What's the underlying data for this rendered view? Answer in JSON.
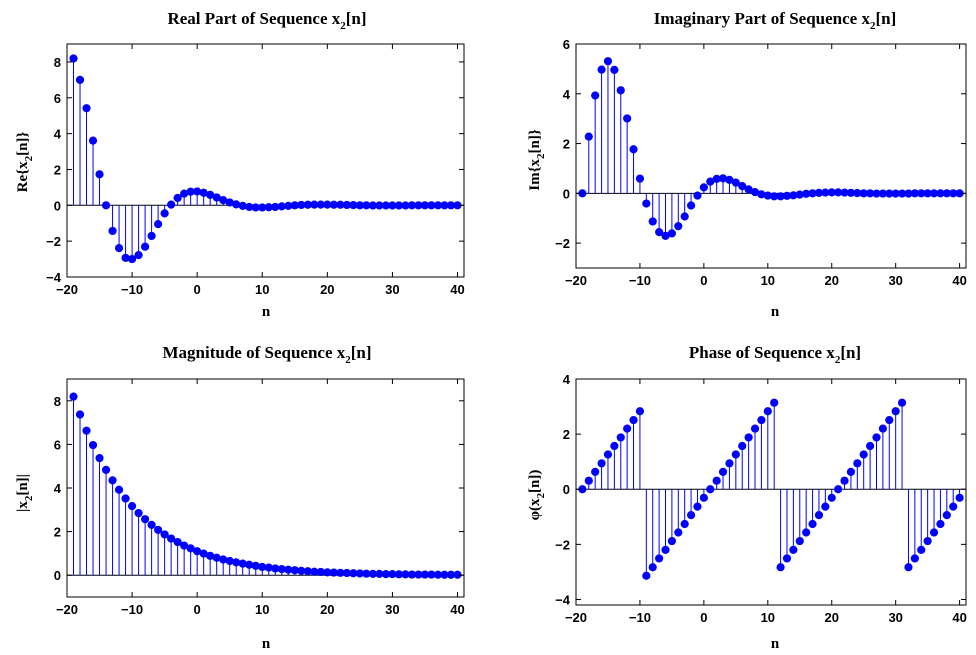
{
  "colors": {
    "stem": "#0000ff",
    "axis": "#000000",
    "baseline": "#000000"
  },
  "subplots": [
    {
      "title": {
        "main": "Real Part of Sequence x",
        "sub": "2",
        "tail": "[n]"
      },
      "ylabel": {
        "pre": "Re{x",
        "sub": "2",
        "post": "[n]}"
      },
      "xlabel": "n"
    },
    {
      "title": {
        "main": "Imaginary Part of Sequence x",
        "sub": "2",
        "tail": "[n]"
      },
      "ylabel": {
        "pre": "Im{x",
        "sub": "2",
        "post": "[n]}"
      },
      "xlabel": "n"
    },
    {
      "title": {
        "main": "Magnitude of Sequence x",
        "sub": "2",
        "tail": "[n]"
      },
      "ylabel": {
        "pre": "|x",
        "sub": "2",
        "post": "[n]|"
      },
      "xlabel": "n"
    },
    {
      "title": {
        "main": "Phase of Sequence x",
        "sub": "2",
        "tail": "[n]"
      },
      "ylabel": {
        "pre": "φ(x",
        "sub": "2",
        "post": "[n])"
      },
      "xlabel": "n"
    }
  ],
  "chart_data": [
    {
      "type": "stem",
      "title": "Real Part of Sequence x_2[n]",
      "xlabel": "n",
      "ylabel": "Re{x_2[n]}",
      "xlim": [
        -20,
        41
      ],
      "ylim": [
        -4,
        9
      ],
      "xticks": [
        -20,
        -10,
        0,
        10,
        20,
        30,
        40
      ],
      "xtick_labels": [
        "−20",
        "−10",
        "0",
        "10",
        "20",
        "30",
        "40"
      ],
      "yticks": [
        -4,
        -2,
        0,
        2,
        4,
        6,
        8
      ],
      "ytick_labels": [
        "−4",
        "−2",
        "0",
        "2",
        "4",
        "6",
        "8"
      ],
      "x": [
        -19,
        -18,
        -17,
        -16,
        -15,
        -14,
        -13,
        -12,
        -11,
        -10,
        -9,
        -8,
        -7,
        -6,
        -5,
        -4,
        -3,
        -2,
        -1,
        0,
        1,
        2,
        3,
        4,
        5,
        6,
        7,
        8,
        9,
        10,
        11,
        12,
        13,
        14,
        15,
        16,
        17,
        18,
        19,
        20,
        21,
        22,
        23,
        24,
        25,
        26,
        27,
        28,
        29,
        30,
        31,
        32,
        33,
        34,
        35,
        36,
        37,
        38,
        39,
        40
      ],
      "values": [
        8.19,
        7.0,
        5.42,
        3.61,
        1.73,
        -0.0,
        -1.43,
        -2.39,
        -2.93,
        -3.0,
        -2.78,
        -2.31,
        -1.71,
        -1.05,
        -0.45,
        0.04,
        0.41,
        0.65,
        0.76,
        0.77,
        0.7,
        0.58,
        0.44,
        0.29,
        0.16,
        0.05,
        -0.03,
        -0.09,
        -0.12,
        -0.12,
        -0.11,
        -0.09,
        -0.06,
        -0.03,
        -0.0,
        0.02,
        0.03,
        0.04,
        0.04,
        0.04,
        0.03,
        0.03,
        0.02,
        0.01,
        0.0,
        -0.0,
        -0.01,
        -0.01,
        -0.01,
        -0.01,
        -0.01,
        -0.01,
        -0.0,
        -0.0,
        -0.0,
        0.0,
        0.0,
        0.0,
        0.0,
        0.0
      ]
    },
    {
      "type": "stem",
      "title": "Imaginary Part of Sequence x_2[n]",
      "xlabel": "n",
      "ylabel": "Im{x_2[n]}",
      "xlim": [
        -20,
        41
      ],
      "ylim": [
        -3,
        6
      ],
      "xticks": [
        -20,
        -10,
        0,
        10,
        20,
        30,
        40
      ],
      "xtick_labels": [
        "−20",
        "−10",
        "0",
        "10",
        "20",
        "30",
        "40"
      ],
      "yticks": [
        -2,
        0,
        2,
        4,
        6
      ],
      "ytick_labels": [
        "−2",
        "0",
        "2",
        "4",
        "6"
      ],
      "x": [
        -19,
        -18,
        -17,
        -16,
        -15,
        -14,
        -13,
        -12,
        -11,
        -10,
        -9,
        -8,
        -7,
        -6,
        -5,
        -4,
        -3,
        -2,
        -1,
        0,
        1,
        2,
        3,
        4,
        5,
        6,
        7,
        8,
        9,
        10,
        11,
        12,
        13,
        14,
        15,
        16,
        17,
        18,
        19,
        20,
        21,
        22,
        23,
        24,
        25,
        26,
        27,
        28,
        29,
        30,
        31,
        32,
        33,
        34,
        35,
        36,
        37,
        38,
        39,
        40
      ],
      "values": [
        0.0,
        2.28,
        3.93,
        4.97,
        5.31,
        4.96,
        4.14,
        3.01,
        1.77,
        0.59,
        -0.41,
        -1.13,
        -1.56,
        -1.71,
        -1.61,
        -1.32,
        -0.93,
        -0.49,
        -0.09,
        0.24,
        0.47,
        0.58,
        0.6,
        0.54,
        0.43,
        0.29,
        0.16,
        0.05,
        -0.04,
        -0.09,
        -0.12,
        -0.12,
        -0.1,
        -0.08,
        -0.05,
        -0.02,
        0.0,
        0.02,
        0.03,
        0.04,
        0.04,
        0.03,
        0.02,
        0.01,
        0.0,
        -0.0,
        -0.01,
        -0.01,
        -0.01,
        -0.01,
        -0.01,
        -0.01,
        -0.0,
        -0.0,
        -0.0,
        0.0,
        0.0,
        0.0,
        0.0,
        0.0
      ]
    },
    {
      "type": "stem",
      "title": "Magnitude of Sequence x_2[n]",
      "xlabel": "n",
      "ylabel": "|x_2[n]|",
      "xlim": [
        -20,
        41
      ],
      "ylim": [
        -1,
        9
      ],
      "xticks": [
        -20,
        -10,
        0,
        10,
        20,
        30,
        40
      ],
      "xtick_labels": [
        "−20",
        "−10",
        "0",
        "10",
        "20",
        "30",
        "40"
      ],
      "yticks": [
        0,
        2,
        4,
        6,
        8
      ],
      "ytick_labels": [
        "0",
        "2",
        "4",
        "6",
        "8"
      ],
      "x": [
        -19,
        -18,
        -17,
        -16,
        -15,
        -14,
        -13,
        -12,
        -11,
        -10,
        -9,
        -8,
        -7,
        -6,
        -5,
        -4,
        -3,
        -2,
        -1,
        0,
        1,
        2,
        3,
        4,
        5,
        6,
        7,
        8,
        9,
        10,
        11,
        12,
        13,
        14,
        15,
        16,
        17,
        18,
        19,
        20,
        21,
        22,
        23,
        24,
        25,
        26,
        27,
        28,
        29,
        30,
        31,
        32,
        33,
        34,
        35,
        36,
        37,
        38,
        39,
        40
      ],
      "values": [
        8.19,
        7.37,
        6.63,
        5.97,
        5.37,
        4.83,
        4.35,
        3.92,
        3.52,
        3.17,
        2.85,
        2.57,
        2.31,
        2.08,
        1.87,
        1.68,
        1.52,
        1.36,
        1.23,
        1.1,
        0.99,
        0.89,
        0.8,
        0.72,
        0.65,
        0.59,
        0.53,
        0.48,
        0.43,
        0.38,
        0.35,
        0.31,
        0.28,
        0.25,
        0.23,
        0.2,
        0.18,
        0.16,
        0.15,
        0.13,
        0.12,
        0.11,
        0.1,
        0.09,
        0.08,
        0.07,
        0.06,
        0.06,
        0.05,
        0.05,
        0.04,
        0.04,
        0.03,
        0.03,
        0.03,
        0.03,
        0.02,
        0.02,
        0.02,
        0.02
      ]
    },
    {
      "type": "stem",
      "title": "Phase of Sequence x_2[n]",
      "xlabel": "n",
      "ylabel": "φ(x_2[n])",
      "xlim": [
        -20,
        41
      ],
      "ylim": [
        -4.2,
        4
      ],
      "xticks": [
        -20,
        -10,
        0,
        10,
        20,
        30,
        40
      ],
      "xtick_labels": [
        "−20",
        "−10",
        "0",
        "10",
        "20",
        "30",
        "40"
      ],
      "yticks": [
        -4,
        -2,
        0,
        2,
        4
      ],
      "ytick_labels": [
        "−4",
        "−2",
        "0",
        "2",
        "4"
      ],
      "x": [
        -19,
        -18,
        -17,
        -16,
        -15,
        -14,
        -13,
        -12,
        -11,
        -10,
        -9,
        -8,
        -7,
        -6,
        -5,
        -4,
        -3,
        -2,
        -1,
        0,
        1,
        2,
        3,
        4,
        5,
        6,
        7,
        8,
        9,
        10,
        11,
        12,
        13,
        14,
        15,
        16,
        17,
        18,
        19,
        20,
        21,
        22,
        23,
        24,
        25,
        26,
        27,
        28,
        29,
        30,
        31,
        32,
        33,
        34,
        35,
        36,
        37,
        38,
        39,
        40
      ],
      "values": [
        0.0,
        0.31,
        0.63,
        0.94,
        1.26,
        1.57,
        1.88,
        2.2,
        2.51,
        2.83,
        -3.14,
        -2.83,
        -2.51,
        -2.2,
        -1.88,
        -1.57,
        -1.26,
        -0.94,
        -0.63,
        -0.31,
        0.0,
        0.31,
        0.63,
        0.94,
        1.26,
        1.57,
        1.88,
        2.2,
        2.51,
        2.83,
        3.14,
        -2.83,
        -2.51,
        -2.2,
        -1.88,
        -1.57,
        -1.26,
        -0.94,
        -0.63,
        -0.31,
        0.0,
        0.31,
        0.63,
        0.94,
        1.26,
        1.57,
        1.88,
        2.2,
        2.51,
        2.83,
        3.14,
        -2.83,
        -2.51,
        -2.2,
        -1.88,
        -1.57,
        -1.26,
        -0.94,
        -0.63,
        -0.31
      ]
    }
  ]
}
